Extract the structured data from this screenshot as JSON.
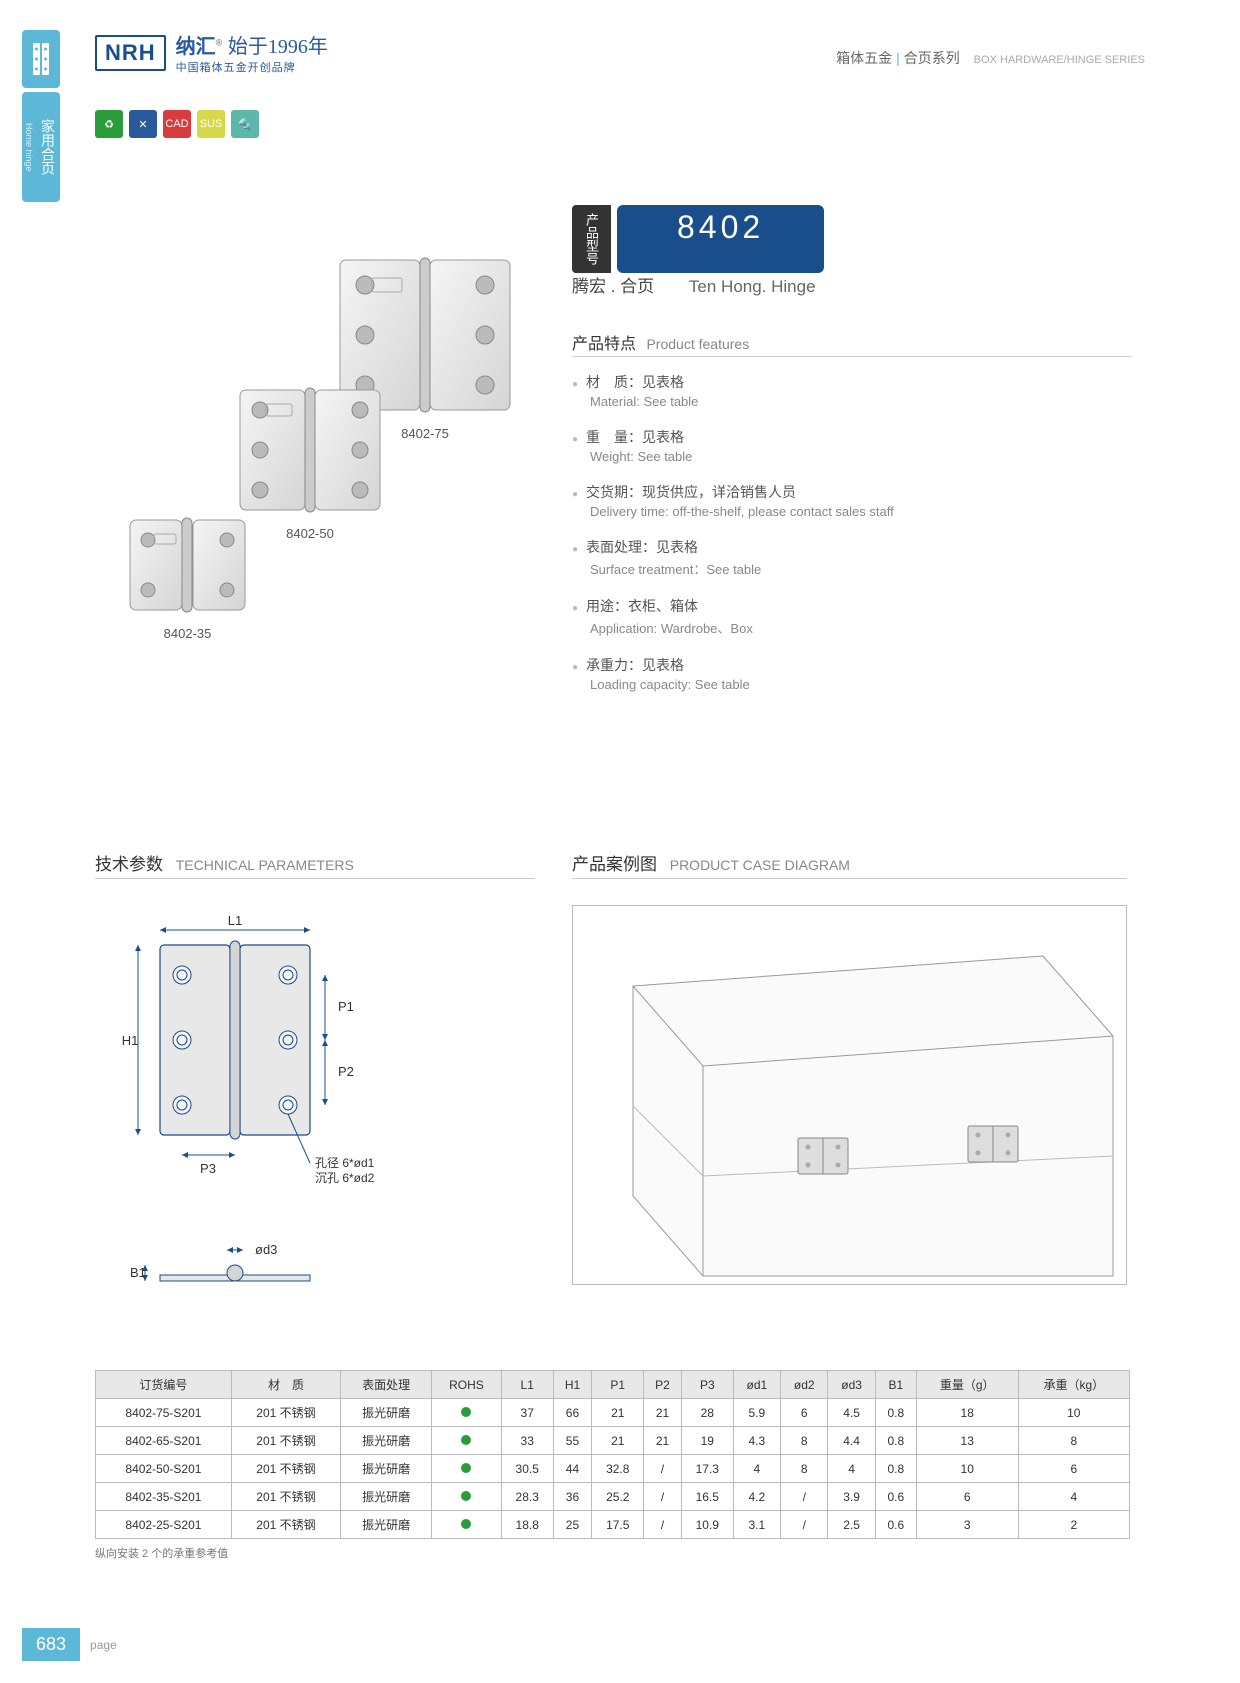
{
  "side_tab_cn": "家用合页",
  "side_tab_en": "Home hinge",
  "logo": {
    "mark": "NRH",
    "cn": "纳汇",
    "sup": "®",
    "since": "始于1996年",
    "sub": "中国箱体五金开创品牌"
  },
  "breadcrumb": {
    "cat1": "箱体五金",
    "cat2": "合页系列",
    "en": "BOX HARDWARE/HINGE SERIES"
  },
  "icons": [
    {
      "bg": "#2a9d3a",
      "glyph": "♻"
    },
    {
      "bg": "#2a5a9c",
      "glyph": "✕"
    },
    {
      "bg": "#d93c3c",
      "glyph": "CAD"
    },
    {
      "bg": "#d6d84a",
      "glyph": "SUS"
    },
    {
      "bg": "#5cb8a8",
      "glyph": "🔩"
    }
  ],
  "product_labels": {
    "a": "8402-75",
    "b": "8402-50",
    "c": "8402-35"
  },
  "model": {
    "label": "产品型号",
    "number": "8402"
  },
  "product_name": {
    "cn": "腾宏 . 合页",
    "en": "Ten Hong. Hinge"
  },
  "features_title": {
    "cn": "产品特点",
    "en": "Product features"
  },
  "features": [
    {
      "zh": "材　质：见表格",
      "en": "Material: See table"
    },
    {
      "zh": "重　量：见表格",
      "en": "Weight: See table"
    },
    {
      "zh": "交货期：现货供应，详洽销售人员",
      "en": "Delivery time: off-the-shelf, please contact sales staff"
    },
    {
      "zh": "表面处理：见表格",
      "en": "Surface treatment：See table"
    },
    {
      "zh": "用途：衣柜、箱体",
      "en": "Application: Wardrobe、Box"
    },
    {
      "zh": "承重力：见表格",
      "en": "Loading capacity: See table"
    }
  ],
  "tech_title": {
    "cn": "技术参数",
    "en": "TECHNICAL PARAMETERS"
  },
  "case_title": {
    "cn": "产品案例图",
    "en": "PRODUCT CASE DIAGRAM"
  },
  "diagram_labels": {
    "L1": "L1",
    "H1": "H1",
    "P1": "P1",
    "P2": "P2",
    "P3": "P3",
    "B1": "B1",
    "od3": "ød3",
    "hole1": "孔径 6*ød1",
    "hole2": "沉孔 6*ød2"
  },
  "table": {
    "headers": [
      "订货编号",
      "材　质",
      "表面处理",
      "ROHS",
      "L1",
      "H1",
      "P1",
      "P2",
      "P3",
      "ød1",
      "ød2",
      "ød3",
      "B1",
      "重量（g）",
      "承重（kg）"
    ],
    "rows": [
      [
        "8402-75-S201",
        "201 不锈钢",
        "振光研磨",
        "●",
        "37",
        "66",
        "21",
        "21",
        "28",
        "5.9",
        "6",
        "4.5",
        "0.8",
        "18",
        "10"
      ],
      [
        "8402-65-S201",
        "201 不锈钢",
        "振光研磨",
        "●",
        "33",
        "55",
        "21",
        "21",
        "19",
        "4.3",
        "8",
        "4.4",
        "0.8",
        "13",
        "8"
      ],
      [
        "8402-50-S201",
        "201 不锈钢",
        "振光研磨",
        "●",
        "30.5",
        "44",
        "32.8",
        "/",
        "17.3",
        "4",
        "8",
        "4",
        "0.8",
        "10",
        "6"
      ],
      [
        "8402-35-S201",
        "201 不锈钢",
        "振光研磨",
        "●",
        "28.3",
        "36",
        "25.2",
        "/",
        "16.5",
        "4.2",
        "/",
        "3.9",
        "0.6",
        "6",
        "4"
      ],
      [
        "8402-25-S201",
        "201 不锈钢",
        "振光研磨",
        "●",
        "18.8",
        "25",
        "17.5",
        "/",
        "10.9",
        "3.1",
        "/",
        "2.5",
        "0.6",
        "3",
        "2"
      ]
    ],
    "note": "纵向安装 2 个的承重参考值"
  },
  "page": {
    "num": "683",
    "label": "page"
  }
}
